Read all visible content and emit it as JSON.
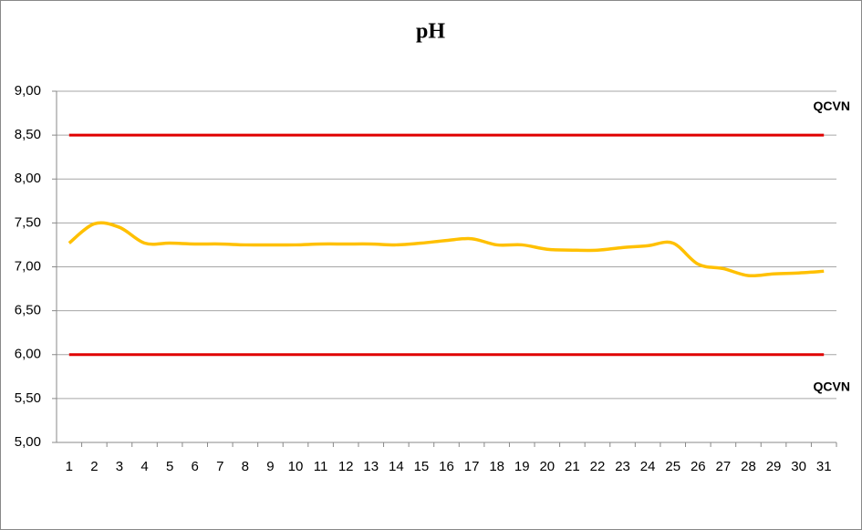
{
  "chart_data": {
    "type": "line",
    "title": "pH",
    "categories": [
      1,
      2,
      3,
      4,
      5,
      6,
      7,
      8,
      9,
      10,
      11,
      12,
      13,
      14,
      15,
      16,
      17,
      18,
      19,
      20,
      21,
      22,
      23,
      24,
      25,
      26,
      27,
      28,
      29,
      30,
      31
    ],
    "series": [
      {
        "color": "#ffc000",
        "values": [
          7.27,
          7.49,
          7.45,
          7.27,
          7.27,
          7.26,
          7.26,
          7.25,
          7.25,
          7.25,
          7.26,
          7.26,
          7.26,
          7.25,
          7.27,
          7.3,
          7.32,
          7.25,
          7.25,
          7.2,
          7.19,
          7.19,
          7.22,
          7.24,
          7.27,
          7.03,
          6.98,
          6.9,
          6.92,
          6.93,
          6.95
        ]
      }
    ],
    "reference_lines": [
      {
        "value": 8.5,
        "label": "QCVN",
        "color": "#e00000",
        "label_position": "above"
      },
      {
        "value": 6.0,
        "label": "QCVN",
        "color": "#e00000",
        "label_position": "below"
      }
    ],
    "ylim": [
      5,
      9
    ],
    "yticks": [
      {
        "value": 5,
        "label": "5,00"
      },
      {
        "value": 5.5,
        "label": "5,50"
      },
      {
        "value": 6,
        "label": "6,00"
      },
      {
        "value": 6.5,
        "label": "6,50"
      },
      {
        "value": 7,
        "label": "7,00"
      },
      {
        "value": 7.5,
        "label": "7,50"
      },
      {
        "value": 8,
        "label": "8,00"
      },
      {
        "value": 8.5,
        "label": "8,50"
      },
      {
        "value": 9,
        "label": "9,00"
      }
    ],
    "grid": true
  }
}
